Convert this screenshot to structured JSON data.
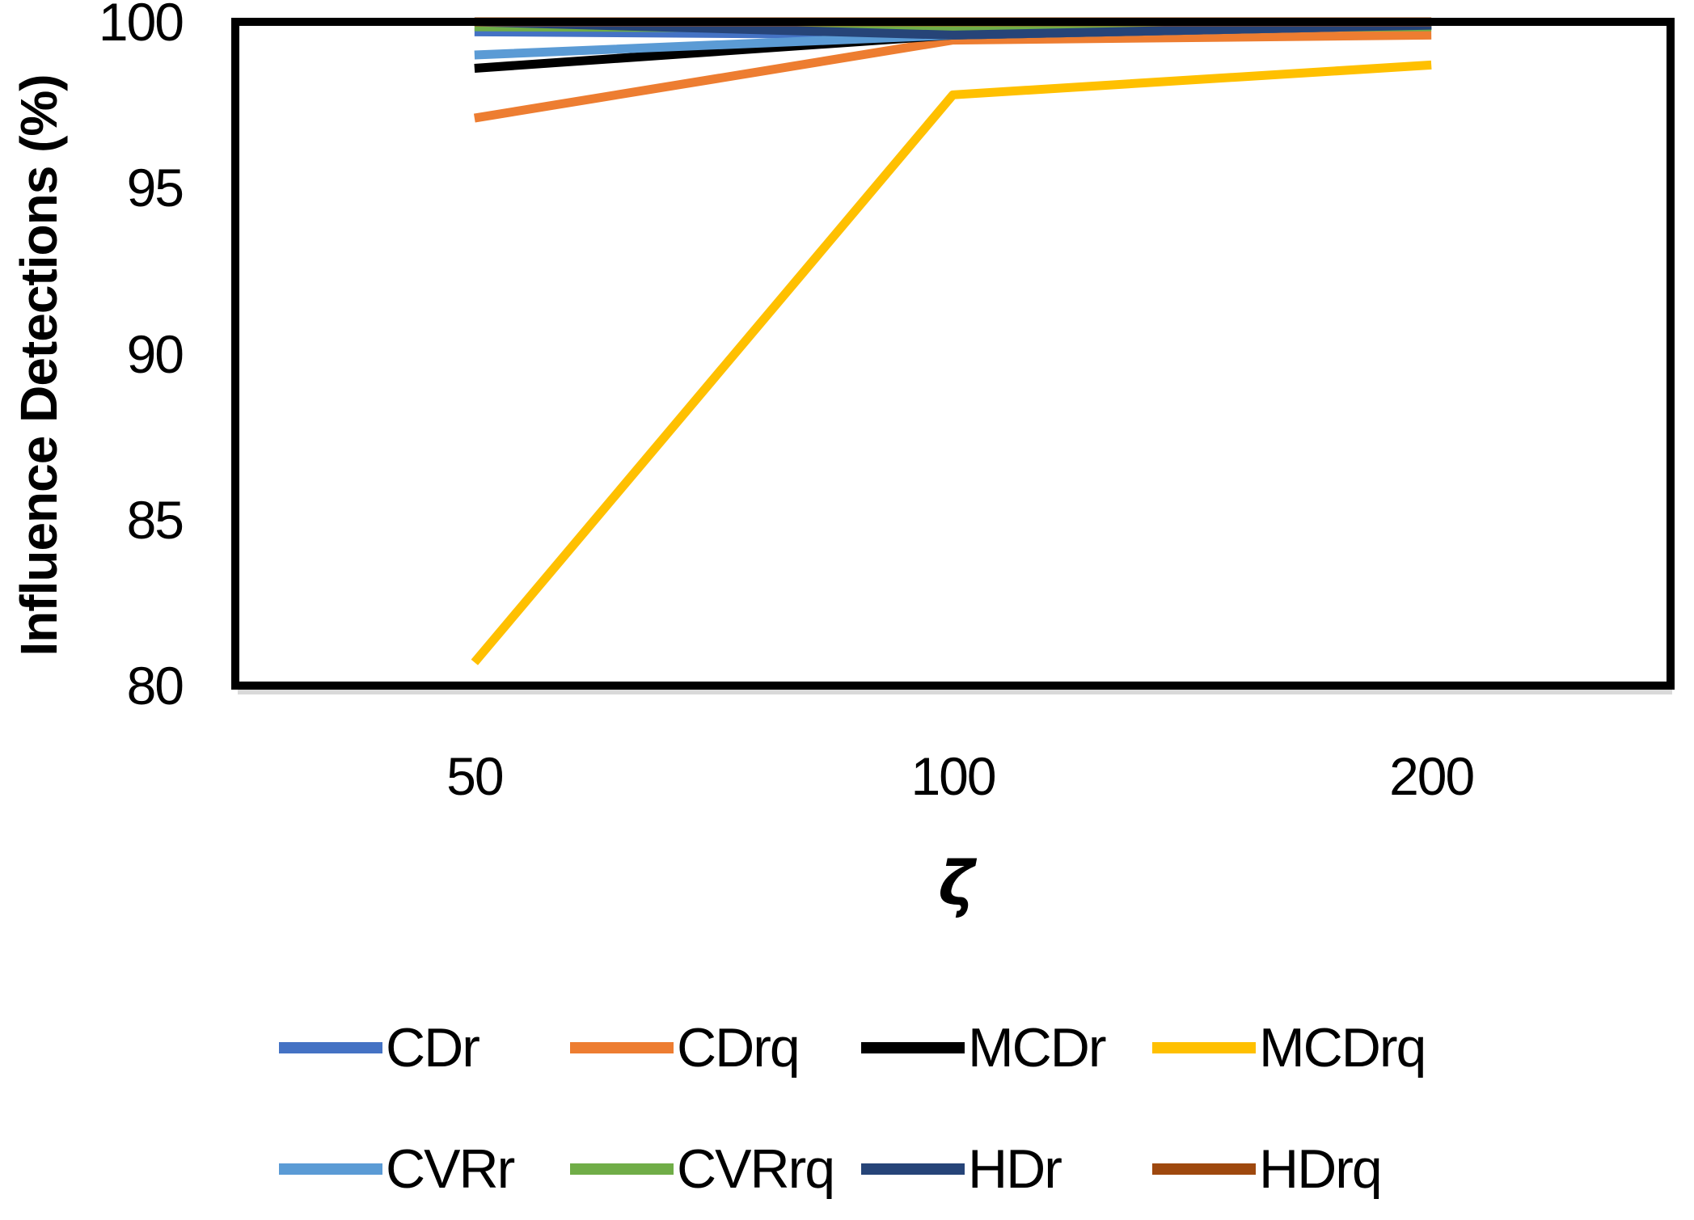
{
  "chart_data": {
    "type": "line",
    "title": "",
    "xlabel": "ζ",
    "ylabel": "Influence Detections (%)",
    "categories": [
      "50",
      "100",
      "200"
    ],
    "ylim": [
      80,
      100
    ],
    "yticks": [
      100,
      95,
      90,
      85,
      80
    ],
    "grid": false,
    "legend_position": "bottom",
    "legend_rows": 2,
    "frame_color": "#000000",
    "axis_shadow_color": "#D9D9D9",
    "series": [
      {
        "name": "CDr",
        "color": "#4472C4",
        "values": [
          99.7,
          99.6,
          99.9
        ]
      },
      {
        "name": "CDrq",
        "color": "#ED7D31",
        "values": [
          97.1,
          99.45,
          99.6
        ]
      },
      {
        "name": "MCDr",
        "color": "#000000",
        "values": [
          98.6,
          99.6,
          99.9
        ]
      },
      {
        "name": "MCDrq",
        "color": "#FFC000",
        "values": [
          80.7,
          97.8,
          98.7
        ]
      },
      {
        "name": "CVRr",
        "color": "#5B9BD5",
        "values": [
          99.0,
          99.6,
          99.9
        ]
      },
      {
        "name": "CVRrq",
        "color": "#70AD47",
        "values": [
          99.85,
          99.8,
          99.85
        ]
      },
      {
        "name": "HDr",
        "color": "#264478",
        "values": [
          100,
          99.6,
          99.9
        ]
      },
      {
        "name": "HDrq",
        "color": "#9E480E",
        "values": [
          100,
          100,
          100
        ]
      }
    ]
  }
}
